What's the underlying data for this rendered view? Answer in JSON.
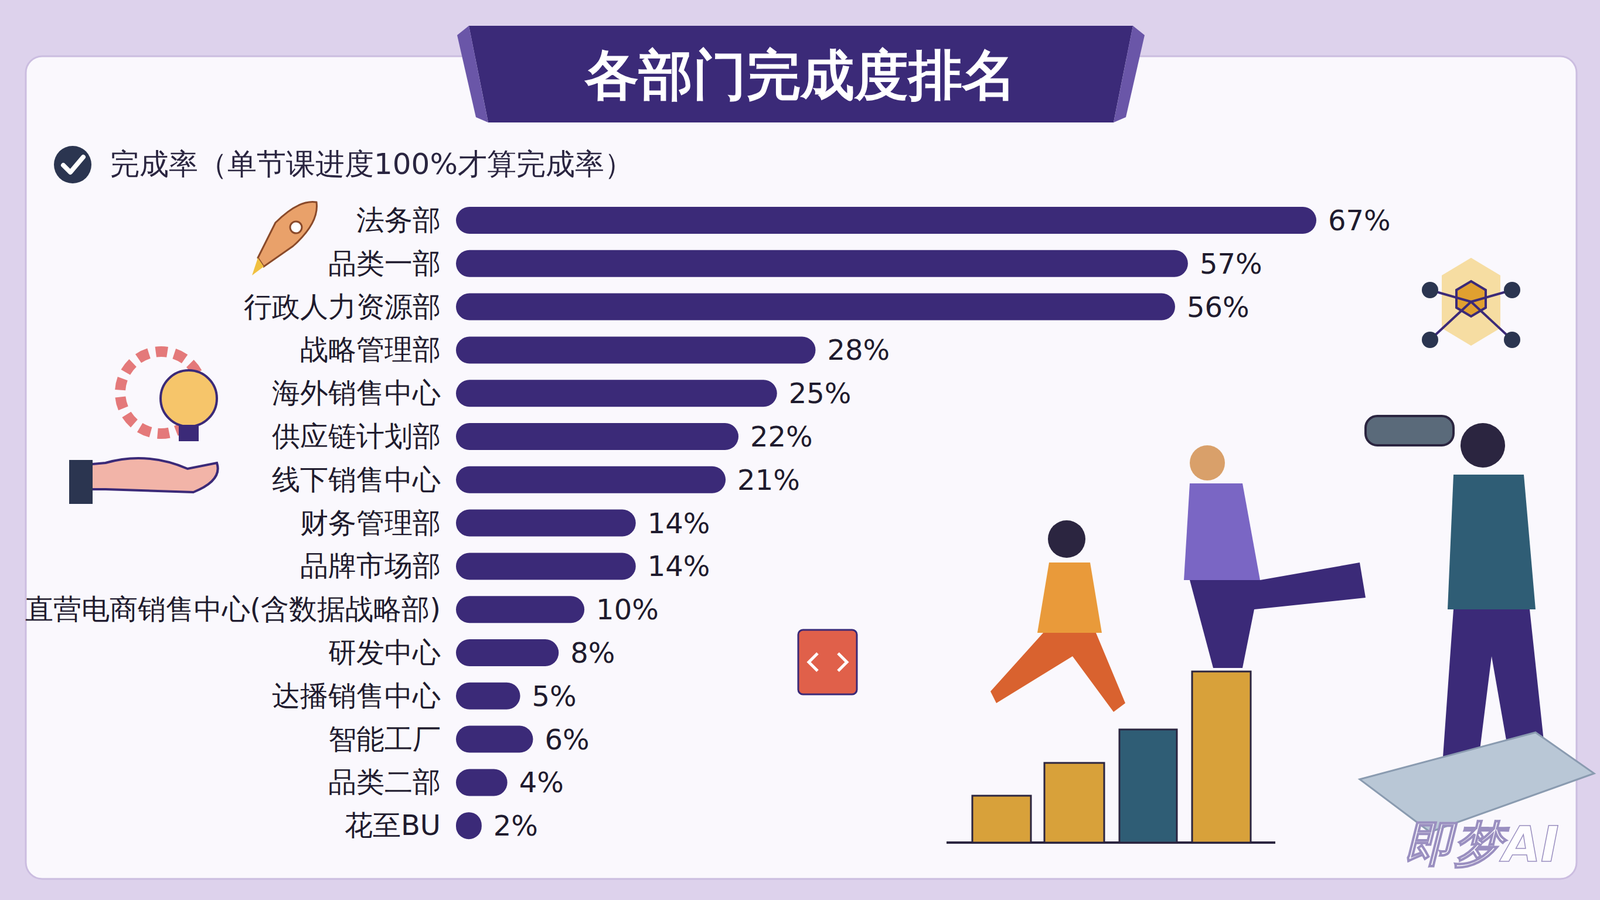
{
  "chart_data": {
    "type": "bar",
    "title": "各部门完成度排名",
    "subtitle": "完成率（单节课进度100%才算完成率）",
    "orientation": "horizontal",
    "categories": [
      "法务部",
      "品类一部",
      "行政人力资源部",
      "战略管理部",
      "海外销售中心",
      "供应链计划部",
      "线下销售中心",
      "财务管理部",
      "品牌市场部",
      "直营电商销售中心(含数据战略部)",
      "研发中心",
      "达播销售中心",
      "智能工厂",
      "品类二部",
      "花至BU"
    ],
    "values": [
      67,
      57,
      56,
      28,
      25,
      22,
      21,
      14,
      14,
      10,
      8,
      5,
      6,
      4,
      2
    ],
    "value_labels": [
      "67%",
      "57%",
      "56%",
      "28%",
      "25%",
      "22%",
      "21%",
      "14%",
      "14%",
      "10%",
      "8%",
      "5%",
      "6%",
      "4%",
      "2%"
    ],
    "data_labels": true,
    "tick_labels": "y",
    "grid": false,
    "xlim": [
      0,
      67
    ],
    "color": "#3b2a78",
    "watermark": "即梦AI"
  }
}
